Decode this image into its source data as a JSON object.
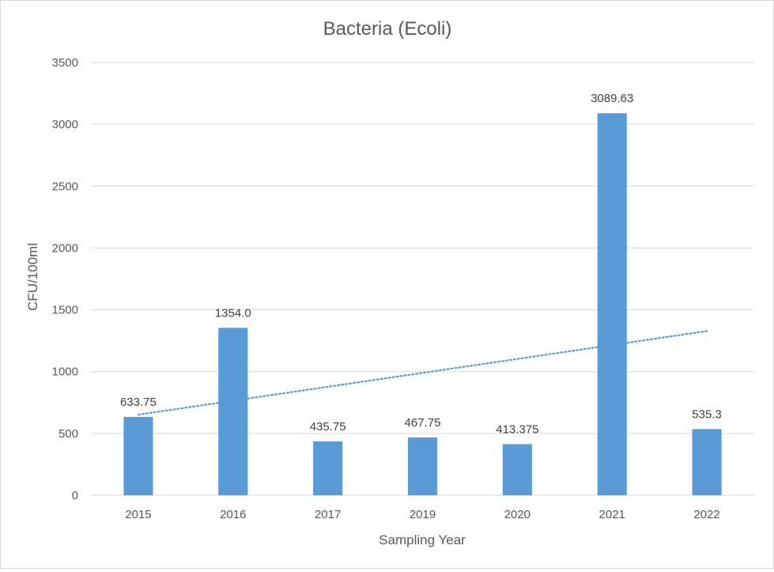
{
  "chart_data": {
    "type": "bar",
    "title": "Bacteria (Ecoli)",
    "xlabel": "Sampling Year",
    "ylabel": "CFU/100ml",
    "categories": [
      "2015",
      "2016",
      "2017",
      "2019",
      "2020",
      "2021",
      "2022"
    ],
    "values": [
      633.75,
      1354.0,
      435.75,
      467.75,
      413.375,
      3089.63,
      535.3
    ],
    "data_labels": [
      "633.75",
      "1354.0",
      "435.75",
      "467.75",
      "413.375",
      "3089.63",
      "535.3"
    ],
    "ylim": [
      0,
      3500
    ],
    "yticks": [
      0,
      500,
      1000,
      1500,
      2000,
      2500,
      3000,
      3500
    ],
    "ytick_labels": [
      "0",
      "500",
      "1000",
      "1500",
      "2000",
      "2500",
      "3000",
      "3500"
    ],
    "grid": true,
    "legend": "none",
    "trendline": {
      "type": "linear",
      "style": "dotted"
    },
    "colors": {
      "bar": "#5b9bd5",
      "trendline": "#5b9bd5",
      "grid": "#d9d9d9",
      "text": "#595959"
    }
  }
}
